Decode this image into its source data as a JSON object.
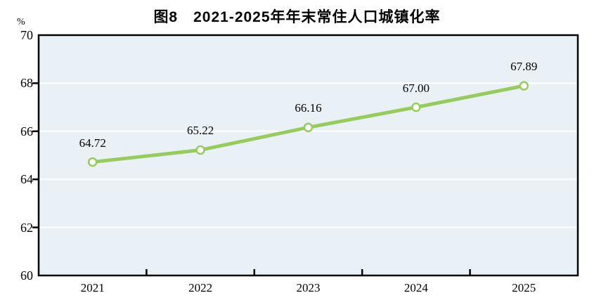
{
  "chart_data": {
    "type": "line",
    "title": "图8　2021-2025年年末常住人口城镇化率",
    "categories": [
      "2021",
      "2022",
      "2023",
      "2024",
      "2025"
    ],
    "values": [
      64.72,
      65.22,
      66.16,
      67.0,
      67.89
    ],
    "point_labels": [
      "64.72",
      "65.22",
      "66.16",
      "67.00",
      "67.89"
    ],
    "series_name": "年末常住人口城镇化率",
    "xlabel": "",
    "ylabel": "%",
    "ylim": [
      60,
      70
    ],
    "ytick_step": 2,
    "yticks": [
      60,
      62,
      64,
      66,
      68,
      70
    ],
    "grid": "horizontal",
    "legend_position": "none",
    "colors": {
      "line": "#97CB5C",
      "marker_fill": "#FFFFFF",
      "plot_background": "#E9F1F6",
      "gridline": "#FFFFFF",
      "axis_border": "#000000",
      "text": "#000000"
    }
  }
}
